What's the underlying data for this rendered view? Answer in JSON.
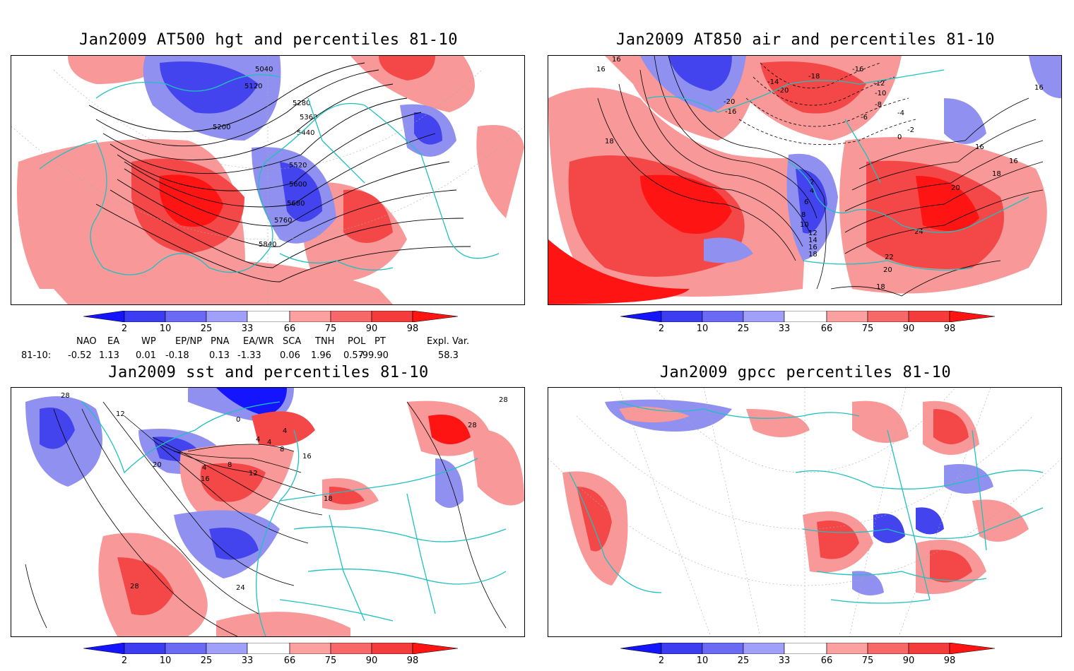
{
  "panels": [
    {
      "title": "Jan2009 AT500 hgt and percentiles 81-10",
      "contour_labels": [
        "5040",
        "5120",
        "5200",
        "5280",
        "5360",
        "5440",
        "5520",
        "5600",
        "5680",
        "5760",
        "5840"
      ]
    },
    {
      "title": "Jan2009 AT850 air and percentiles 81-10",
      "contour_labels": [
        "16",
        "16",
        "16",
        "18",
        "-14",
        "-20",
        "-18",
        "-16",
        "-20",
        "-16",
        "-12",
        "-10",
        "-8",
        "-6",
        "-4",
        "-2",
        "0",
        "2",
        "4",
        "6",
        "8",
        "10",
        "12",
        "14",
        "16",
        "18",
        "20",
        "22",
        "24",
        "18",
        "16",
        "18",
        "16",
        "20"
      ]
    },
    {
      "title": "Jan2009 sst and percentiles 81-10",
      "contour_labels": [
        "28",
        "12",
        "20",
        "0",
        "4",
        "4",
        "4",
        "8",
        "4",
        "8",
        "12",
        "16",
        "16",
        "18",
        "28",
        "28",
        "24",
        "28"
      ]
    },
    {
      "title": "Jan2009 gpcc percentiles 81-10",
      "contour_labels": []
    }
  ],
  "colorbar": {
    "labels": [
      "2",
      "10",
      "25",
      "33",
      "66",
      "75",
      "90",
      "98"
    ],
    "colors": [
      "#1414ff",
      "#3c3cf0",
      "#6a6af5",
      "#a0a0fa",
      "#ffffff",
      "#fca0a0",
      "#f86868",
      "#f43c3c",
      "#ff1414"
    ]
  },
  "indices": {
    "row_label": "81-10:",
    "headers": [
      "NAO",
      "EA",
      "WP",
      "EP/NP",
      "PNA",
      "EA/WR",
      "SCA",
      "TNH",
      "POL",
      "PT",
      "Expl. Var."
    ],
    "values": [
      "-0.52",
      "1.13",
      "0.01",
      "-0.18",
      "0.13",
      "-1.33",
      "0.06",
      "1.96",
      "0.57",
      "-99.90",
      "58.3"
    ]
  },
  "map_colors": {
    "coast": "#20c0c0",
    "red": "#f44848",
    "lightred": "#f89898",
    "blue": "#4444ee",
    "lightblue": "#9090f0"
  }
}
